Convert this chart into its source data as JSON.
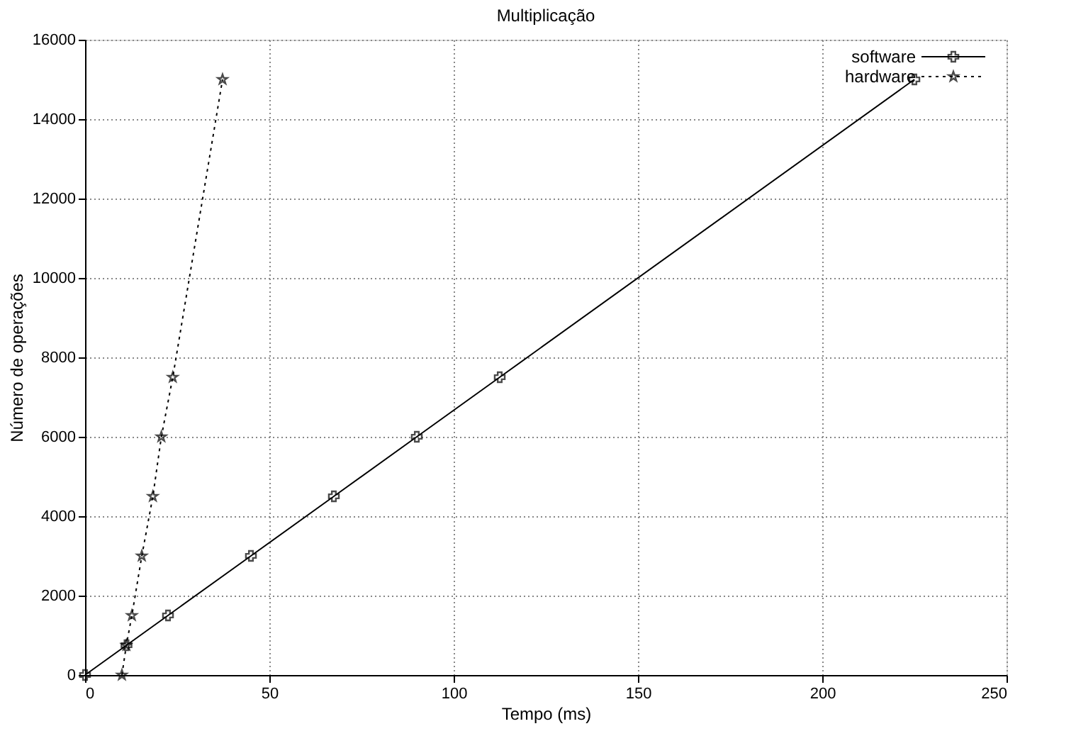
{
  "chart_data": {
    "type": "line",
    "title": "Multiplicação",
    "xlabel": "Tempo (ms)",
    "ylabel": "Número de operações",
    "xlim": [
      0,
      250
    ],
    "xticks": [
      0,
      50,
      100,
      150,
      200,
      250
    ],
    "ylim": [
      0,
      16000
    ],
    "yticks": [
      0,
      2000,
      4000,
      6000,
      8000,
      10000,
      12000,
      14000,
      16000
    ],
    "grid": true,
    "legend": "top right",
    "series": [
      {
        "name": "software",
        "color": "#000000",
        "marker": "cross",
        "line_style": "solid",
        "x": [
          0,
          11.25,
          22.5,
          45,
          67.5,
          90,
          112.5,
          225
        ],
        "values": [
          0,
          750,
          1500,
          3000,
          4500,
          6000,
          7500,
          15000
        ]
      },
      {
        "name": "hardware",
        "color": "#000000",
        "marker": "star",
        "line_style": "dotted",
        "x": [
          10,
          11.2,
          12.7,
          15.4,
          18.4,
          20.7,
          23.8,
          37.3
        ],
        "values": [
          0,
          750,
          1500,
          3000,
          4500,
          6000,
          7500,
          15000
        ]
      }
    ]
  }
}
